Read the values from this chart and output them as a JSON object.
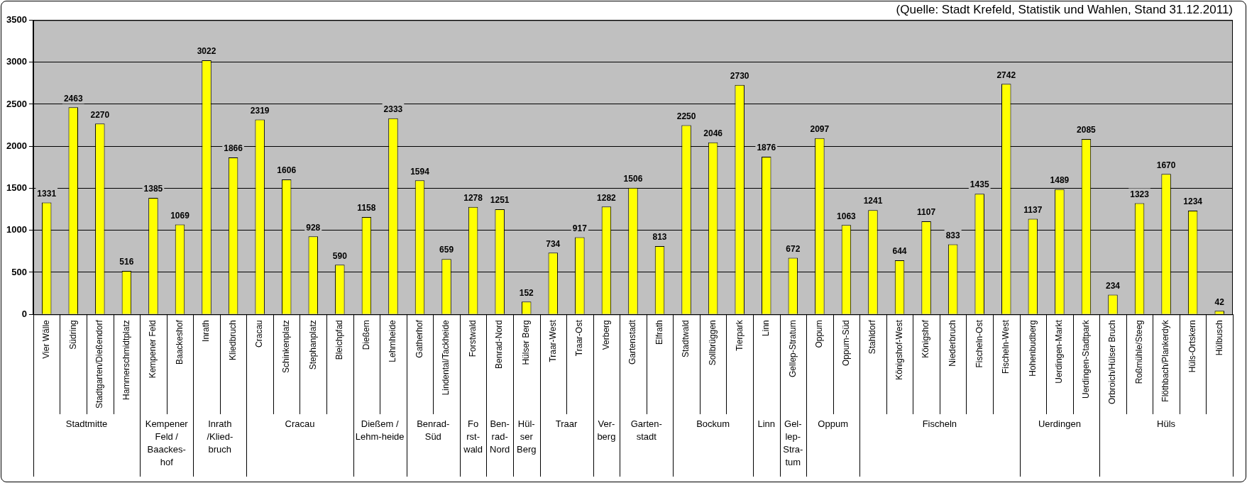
{
  "chart_data": {
    "type": "bar",
    "subtitle": "(Quelle: Stadt Krefeld, Statistik und Wahlen, Stand 31.12.2011)",
    "categories": [
      "Vier Wälle",
      "Südring",
      "Stadtgarten/Dießendorf",
      "Hammerschmidtplatz",
      "Kempener Feld",
      "Baackeshof",
      "Inrath",
      "Kliedbruch",
      "Cracau",
      "Schinkenplatz",
      "Stephanplatz",
      "Bleichpfad",
      "Dießem",
      "Lehmheide",
      "Gatherhof",
      "Lindental/Tackheide",
      "Forstwald",
      "Benrad-Nord",
      "Hülser Berg",
      "Traar-West",
      "Traar-Ost",
      "Verberg",
      "Gartenstadt",
      "Elfrath",
      "Stadtwald",
      "Sollbrüggen",
      "Tierpark",
      "Linn",
      "Gellep-Stratum",
      "Oppum",
      "Oppum-Süd",
      "Stahldorf",
      "Königshof-West",
      "Königshof",
      "Niederbruch",
      "Fischeln-Ost",
      "Fischeln-West",
      "Hohenbudberg",
      "Uerdingen-Markt",
      "Uerdingen-Stadtpark",
      "Orbroich/Hülser Bruch",
      "Roßmühle/Steeg",
      "Flöthbach/Plankerdyk",
      "Hüls-Ortskern",
      "Hülbusch"
    ],
    "values": [
      1331,
      2463,
      2270,
      516,
      1385,
      1069,
      3022,
      1866,
      2319,
      1606,
      928,
      590,
      1158,
      2333,
      1594,
      659,
      1278,
      1251,
      152,
      734,
      917,
      1282,
      1506,
      813,
      2250,
      2046,
      2730,
      1876,
      672,
      2097,
      1063,
      1241,
      644,
      1107,
      833,
      1435,
      2742,
      1137,
      1489,
      2085,
      234,
      1323,
      1670,
      1234,
      42
    ],
    "color": "#ffff00",
    "ylim": [
      0,
      3500
    ],
    "yticks": [
      0,
      500,
      1000,
      1500,
      2000,
      2500,
      3000,
      3500
    ],
    "grid": "y",
    "data_labels": true,
    "annotations": [
      "Stadtmitte",
      "Kempener\nFeld /\nBaackes-\nhof",
      "Inrath\n/Klied-\nbruch",
      "Cracau",
      "Dießem /\nLehm-heide",
      "Benrad-\nSüd",
      "Fo\nrst-\nwald",
      "Ben-\nrad-\nNord",
      "Hül-\nser\nBerg",
      "Traar",
      "Ver-\nberg",
      "Garten-\nstadt",
      "Bockum",
      "Linn",
      "Gel-\nlep-\nStra-\ntum",
      "Oppum",
      "Fischeln",
      "Uerdingen",
      "Hüls"
    ]
  }
}
